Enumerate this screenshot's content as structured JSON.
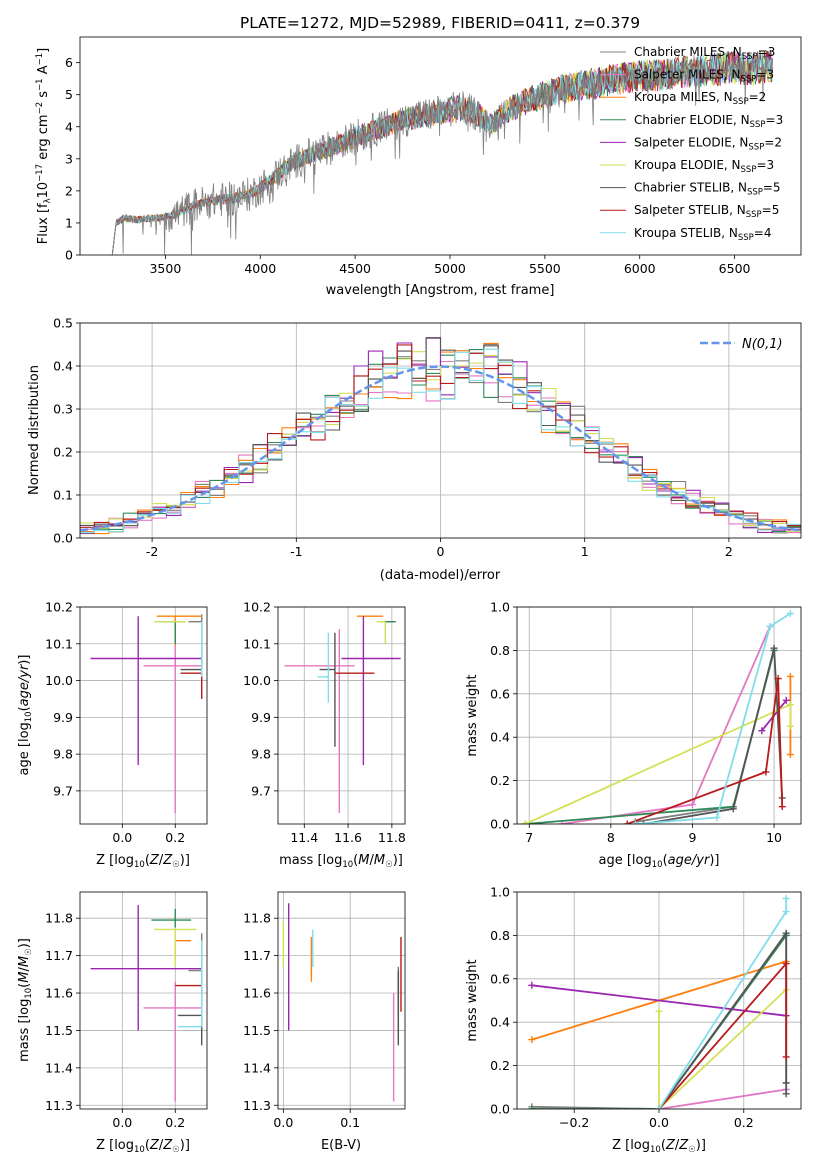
{
  "figure_title": "PLATE=1272, MJD=52989, FIBERID=0411, z=0.379",
  "models": [
    {
      "name": "Chabrier MILES",
      "nssp": "3",
      "color": "#808080"
    },
    {
      "name": "Salpeter MILES",
      "nssp": "3",
      "color": "#e377c2"
    },
    {
      "name": "Kroupa MILES",
      "nssp": "2",
      "color": "#ff7f0e"
    },
    {
      "name": "Chabrier ELODIE",
      "nssp": "3",
      "color": "#2e8b57"
    },
    {
      "name": "Salpeter ELODIE",
      "nssp": "2",
      "color": "#9b27b0"
    },
    {
      "name": "Kroupa ELODIE",
      "nssp": "3",
      "color": "#d4e157"
    },
    {
      "name": "Chabrier STELIB",
      "nssp": "5",
      "color": "#555555"
    },
    {
      "name": "Salpeter STELIB",
      "nssp": "5",
      "color": "#b71c1c"
    },
    {
      "name": "Kroupa STELIB",
      "nssp": "4",
      "color": "#80deea"
    }
  ],
  "chart_data": [
    {
      "id": "spectrum",
      "type": "line",
      "xlabel": "wavelength [Angstrom, rest frame]",
      "ylabel": "Flux [f_λ 10^-17 erg cm^-2 s^-1 A^-1]",
      "xlim": [
        3050,
        6850
      ],
      "ylim": [
        0,
        6.8
      ],
      "xticks": [
        3500,
        4000,
        4500,
        5000,
        5500,
        6000,
        6500
      ],
      "yticks": [
        0,
        1,
        2,
        3,
        4,
        5,
        6
      ],
      "observed_continuum": {
        "x": [
          3220,
          3240,
          3280,
          3350,
          3450,
          3550,
          3650,
          3750,
          3850,
          3950,
          4050,
          4150,
          4250,
          4350,
          4450,
          4550,
          4650,
          4750,
          4850,
          4950,
          5050,
          5150,
          5200,
          5300,
          5400,
          5500,
          5600,
          5700,
          5800,
          5900,
          6000,
          6100,
          6200,
          6300,
          6400,
          6500,
          6600,
          6700
        ],
        "y": [
          0,
          1.0,
          1.15,
          1.1,
          1.15,
          1.25,
          1.55,
          1.7,
          1.75,
          1.9,
          2.3,
          2.8,
          3.1,
          3.3,
          3.55,
          3.8,
          4.0,
          4.2,
          4.35,
          4.45,
          4.6,
          4.4,
          4.0,
          4.5,
          4.8,
          5.0,
          5.2,
          5.3,
          5.4,
          5.5,
          5.6,
          5.6,
          5.7,
          5.75,
          5.8,
          5.85,
          5.8,
          5.9
        ]
      }
    },
    {
      "id": "residual-histogram",
      "type": "histogram",
      "xlabel": "(data-model)/error",
      "ylabel": "Normed distribution",
      "xlim": [
        -2.5,
        2.5
      ],
      "ylim": [
        0,
        0.5
      ],
      "xticks": [
        -2,
        -1,
        0,
        1,
        2
      ],
      "yticks": [
        0.0,
        0.1,
        0.2,
        0.3,
        0.4,
        0.5
      ],
      "bin_width": 0.1,
      "curve_label": "N(0,1)",
      "curve_color": "#6495ed"
    },
    {
      "id": "age-vs-z",
      "type": "errorbar",
      "xlabel": "Z [log10(Z/Z☉)]",
      "ylabel": "age  [log10(age/yr)]",
      "xlim": [
        -0.16,
        0.32
      ],
      "ylim": [
        9.61,
        10.2
      ],
      "xticks": [
        0.0,
        0.2
      ],
      "xtick_labels": [
        "0.0",
        "0.2"
      ],
      "yticks": [
        9.7,
        9.8,
        9.9,
        10.0,
        10.1,
        10.2
      ],
      "ytick_labels": [
        "9.7",
        "9.8",
        "9.9",
        "10.0",
        "10.1",
        "10.2"
      ],
      "points": [
        {
          "model": 0,
          "x": 0.3,
          "y": 10.16,
          "xerr": [
            0.05,
            0.0
          ],
          "yerr": [
            0.1,
            0.02
          ]
        },
        {
          "model": 1,
          "x": 0.2,
          "y": 10.04,
          "xerr": [
            0.12,
            0.1
          ],
          "yerr": [
            0.4,
            0.1
          ]
        },
        {
          "model": 2,
          "x": 0.2,
          "y": 10.175,
          "xerr": [
            0.07,
            0.1
          ],
          "yerr": [
            0.08,
            0.0
          ]
        },
        {
          "model": 3,
          "x": 0.2,
          "y": 10.16,
          "xerr": [
            0.06,
            0.03
          ],
          "yerr": [
            0.06,
            0.0
          ]
        },
        {
          "model": 4,
          "x": 0.06,
          "y": 10.06,
          "xerr": [
            0.18,
            0.24
          ],
          "yerr": [
            0.29,
            0.115
          ]
        },
        {
          "model": 5,
          "x": 0.18,
          "y": 10.16,
          "xerr": [
            0.06,
            0.06
          ],
          "yerr": [
            0.0,
            0.0
          ]
        },
        {
          "model": 6,
          "x": 0.3,
          "y": 10.03,
          "xerr": [
            0.08,
            0.0
          ],
          "yerr": [
            0.0,
            0.13
          ]
        },
        {
          "model": 7,
          "x": 0.3,
          "y": 10.02,
          "xerr": [
            0.08,
            0.0
          ],
          "yerr": [
            0.07,
            0.0
          ]
        },
        {
          "model": 8,
          "x": 0.3,
          "y": 10.16,
          "xerr": [
            0.0,
            0.0
          ],
          "yerr": [
            0.15,
            0.0
          ]
        }
      ]
    },
    {
      "id": "age-vs-mass",
      "type": "errorbar",
      "xlabel": "mass [log10(M/M☉)]",
      "xlim": [
        11.28,
        11.86
      ],
      "ylim": [
        9.61,
        10.2
      ],
      "xticks": [
        11.4,
        11.6,
        11.8
      ],
      "xtick_labels": [
        "11.4",
        "11.6",
        "11.8"
      ],
      "yticks": [
        9.7,
        9.8,
        9.9,
        10.0,
        10.1,
        10.2
      ],
      "ytick_labels": [
        "9.7",
        "9.8",
        "9.9",
        "10.0",
        "10.1",
        "10.2"
      ],
      "points": [
        {
          "model": 0,
          "x": 11.79,
          "y": 10.16,
          "xerr": [
            0.03,
            0.03
          ],
          "yerr": [
            0.0,
            0.0
          ]
        },
        {
          "model": 1,
          "x": 11.56,
          "y": 10.04,
          "xerr": [
            0.25,
            0.07
          ],
          "yerr": [
            0.4,
            0.1
          ]
        },
        {
          "model": 2,
          "x": 11.68,
          "y": 10.175,
          "xerr": [
            0.04,
            0.08
          ],
          "yerr": [
            0.0,
            0.0
          ]
        },
        {
          "model": 3,
          "x": 11.79,
          "y": 10.16,
          "xerr": [
            0.04,
            0.02
          ],
          "yerr": [
            0.0,
            0.0
          ]
        },
        {
          "model": 4,
          "x": 11.67,
          "y": 10.06,
          "xerr": [
            0.1,
            0.17
          ],
          "yerr": [
            0.29,
            0.115
          ]
        },
        {
          "model": 5,
          "x": 11.77,
          "y": 10.16,
          "xerr": [
            0.04,
            0.0
          ],
          "yerr": [
            0.06,
            0.0
          ]
        },
        {
          "model": 6,
          "x": 11.54,
          "y": 10.03,
          "xerr": [
            0.07,
            0.0
          ],
          "yerr": [
            0.21,
            0.1
          ]
        },
        {
          "model": 7,
          "x": 11.62,
          "y": 10.02,
          "xerr": [
            0.08,
            0.1
          ],
          "yerr": [
            0.0,
            0.0
          ]
        },
        {
          "model": 8,
          "x": 11.51,
          "y": 10.01,
          "xerr": [
            0.05,
            0.0
          ],
          "yerr": [
            0.07,
            0.12
          ]
        }
      ]
    },
    {
      "id": "weight-vs-age",
      "type": "line",
      "xlabel": "age  [log10(age/yr)]",
      "ylabel": "mass weight",
      "xlim": [
        6.85,
        10.33
      ],
      "ylim": [
        0,
        1.0
      ],
      "xticks": [
        7,
        8,
        9,
        10
      ],
      "yticks": [
        0.0,
        0.2,
        0.4,
        0.6,
        0.8,
        1.0
      ],
      "series": [
        {
          "model": 0,
          "x": [
            8.3,
            9.5,
            10.0
          ],
          "y": [
            0.01,
            0.08,
            0.8
          ]
        },
        {
          "model": 1,
          "x": [
            7.4,
            9.0,
            9.95
          ],
          "y": [
            0.0,
            0.09,
            0.91
          ]
        },
        {
          "model": 2,
          "x": [
            10.2,
            10.2
          ],
          "y": [
            0.32,
            0.68
          ]
        },
        {
          "model": 3,
          "x": [
            6.95,
            9.5,
            10.0
          ],
          "y": [
            0.0,
            0.08,
            0.8
          ]
        },
        {
          "model": 4,
          "x": [
            9.85,
            10.15
          ],
          "y": [
            0.43,
            0.57
          ]
        },
        {
          "model": 5,
          "x": [
            6.95,
            10.2,
            10.2
          ],
          "y": [
            0.0,
            0.55,
            0.45
          ]
        },
        {
          "model": 6,
          "x": [
            8.4,
            9.5,
            10.0,
            10.1
          ],
          "y": [
            0.0,
            0.07,
            0.81,
            0.12
          ]
        },
        {
          "model": 7,
          "x": [
            8.2,
            9.9,
            10.05,
            10.1
          ],
          "y": [
            0.0,
            0.24,
            0.67,
            0.08
          ]
        },
        {
          "model": 8,
          "x": [
            8.3,
            9.3,
            9.95,
            10.2
          ],
          "y": [
            0.0,
            0.03,
            0.91,
            0.97
          ]
        }
      ]
    },
    {
      "id": "mass-vs-z",
      "type": "errorbar",
      "xlabel": "Z [log10(Z/Z☉)]",
      "ylabel": "mass [log10(M/M☉)]",
      "xlim": [
        -0.16,
        0.32
      ],
      "ylim": [
        11.29,
        11.87
      ],
      "xticks": [
        0.0,
        0.2
      ],
      "xtick_labels": [
        "0.0",
        "0.2"
      ],
      "yticks": [
        11.3,
        11.4,
        11.5,
        11.6,
        11.7,
        11.8
      ],
      "ytick_labels": [
        "11.3",
        "11.4",
        "11.5",
        "11.6",
        "11.7",
        "11.8"
      ],
      "points": [
        {
          "model": 0,
          "x": 0.3,
          "y": 11.66,
          "xerr": [
            0.05,
            0.0
          ],
          "yerr": [
            0.1,
            0.1
          ]
        },
        {
          "model": 1,
          "x": 0.2,
          "y": 11.56,
          "xerr": [
            0.12,
            0.1
          ],
          "yerr": [
            0.25,
            0.07
          ]
        },
        {
          "model": 2,
          "x": 0.2,
          "y": 11.74,
          "xerr": [
            0.0,
            0.06
          ],
          "yerr": [
            0.05,
            0.0
          ]
        },
        {
          "model": 3,
          "x": 0.2,
          "y": 11.795,
          "xerr": [
            0.09,
            0.06
          ],
          "yerr": [
            0.02,
            0.03
          ]
        },
        {
          "model": 4,
          "x": 0.06,
          "y": 11.665,
          "xerr": [
            0.18,
            0.24
          ],
          "yerr": [
            0.165,
            0.17
          ]
        },
        {
          "model": 5,
          "x": 0.2,
          "y": 11.77,
          "xerr": [
            0.08,
            0.08
          ],
          "yerr": [
            0.1,
            0.0
          ]
        },
        {
          "model": 6,
          "x": 0.3,
          "y": 11.54,
          "xerr": [
            0.09,
            0.0
          ],
          "yerr": [
            0.08,
            0.0
          ]
        },
        {
          "model": 7,
          "x": 0.3,
          "y": 11.62,
          "xerr": [
            0.1,
            0.0
          ],
          "yerr": [
            0.0,
            0.0
          ]
        },
        {
          "model": 8,
          "x": 0.3,
          "y": 11.51,
          "xerr": [
            0.09,
            0.0
          ],
          "yerr": [
            0.0,
            0.23
          ]
        }
      ]
    },
    {
      "id": "mass-vs-ebv",
      "type": "errorbar",
      "xlabel": "E(B-V)",
      "xlim": [
        -0.008,
        0.182
      ],
      "ylim": [
        11.29,
        11.87
      ],
      "xticks": [
        0.0,
        0.1
      ],
      "xtick_labels": [
        "0.0",
        "0.1"
      ],
      "yticks": [
        11.3,
        11.4,
        11.5,
        11.6,
        11.7,
        11.8
      ],
      "ytick_labels": [
        "11.3",
        "11.4",
        "11.5",
        "11.6",
        "11.7",
        "11.8"
      ],
      "points": [
        {
          "model": 0,
          "x": 0.172,
          "y": 11.58,
          "xerr": [
            0.0,
            0.0
          ],
          "yerr": [
            0.09,
            0.09
          ]
        },
        {
          "model": 1,
          "x": 0.165,
          "y": 11.49,
          "xerr": [
            0.0,
            0.0
          ],
          "yerr": [
            0.18,
            0.11
          ]
        },
        {
          "model": 2,
          "x": 0.042,
          "y": 11.69,
          "xerr": [
            0.0,
            0.0
          ],
          "yerr": [
            0.06,
            0.06
          ]
        },
        {
          "model": 3,
          "x": 0.172,
          "y": 11.6,
          "xerr": [
            0.0,
            0.0
          ],
          "yerr": [
            0.06,
            0.06
          ]
        },
        {
          "model": 4,
          "x": 0.008,
          "y": 11.67,
          "xerr": [
            0.0,
            0.0
          ],
          "yerr": [
            0.17,
            0.17
          ]
        },
        {
          "model": 5,
          "x": 0.0,
          "y": 11.73,
          "xerr": [
            0.0,
            0.0
          ],
          "yerr": [
            0.06,
            0.06
          ]
        },
        {
          "model": 6,
          "x": 0.172,
          "y": 11.56,
          "xerr": [
            0.0,
            0.0
          ],
          "yerr": [
            0.1,
            0.1
          ]
        },
        {
          "model": 7,
          "x": 0.176,
          "y": 11.65,
          "xerr": [
            0.0,
            0.0
          ],
          "yerr": [
            0.1,
            0.1
          ]
        },
        {
          "model": 8,
          "x": 0.044,
          "y": 11.72,
          "xerr": [
            0.0,
            0.0
          ],
          "yerr": [
            0.05,
            0.05
          ]
        }
      ]
    },
    {
      "id": "weight-vs-z",
      "type": "line",
      "xlabel": "Z [log10(Z/Z☉)]",
      "ylabel": "mass weight",
      "xlim": [
        -0.335,
        0.335
      ],
      "ylim": [
        0,
        1.0
      ],
      "xticks": [
        -0.2,
        0.0,
        0.2
      ],
      "xtick_labels": [
        "−0.2",
        "0.0",
        "0.2"
      ],
      "yticks": [
        0.0,
        0.2,
        0.4,
        0.6,
        0.8,
        1.0
      ],
      "series": [
        {
          "model": 0,
          "x": [
            -0.3,
            0.0,
            0.3,
            0.3
          ],
          "y": [
            0.01,
            0.0,
            0.8,
            0.12
          ]
        },
        {
          "model": 1,
          "x": [
            0.0,
            0.3
          ],
          "y": [
            0.0,
            0.09
          ]
        },
        {
          "model": 2,
          "x": [
            -0.3,
            0.3
          ],
          "y": [
            0.32,
            0.68
          ]
        },
        {
          "model": 3,
          "x": [
            -0.3,
            0.0,
            0.3
          ],
          "y": [
            0.0,
            0.0,
            0.8
          ]
        },
        {
          "model": 4,
          "x": [
            -0.3,
            0.3
          ],
          "y": [
            0.57,
            0.43
          ]
        },
        {
          "model": 5,
          "x": [
            0.0,
            0.0,
            0.3
          ],
          "y": [
            0.45,
            0.0,
            0.55
          ]
        },
        {
          "model": 6,
          "x": [
            0.0,
            0.3,
            0.3,
            0.3
          ],
          "y": [
            0.0,
            0.81,
            0.12,
            0.07
          ]
        },
        {
          "model": 7,
          "x": [
            0.0,
            0.3,
            0.3
          ],
          "y": [
            0.0,
            0.67,
            0.24
          ]
        },
        {
          "model": 8,
          "x": [
            0.0,
            0.3,
            0.3
          ],
          "y": [
            0.0,
            0.91,
            0.97
          ]
        }
      ]
    }
  ]
}
